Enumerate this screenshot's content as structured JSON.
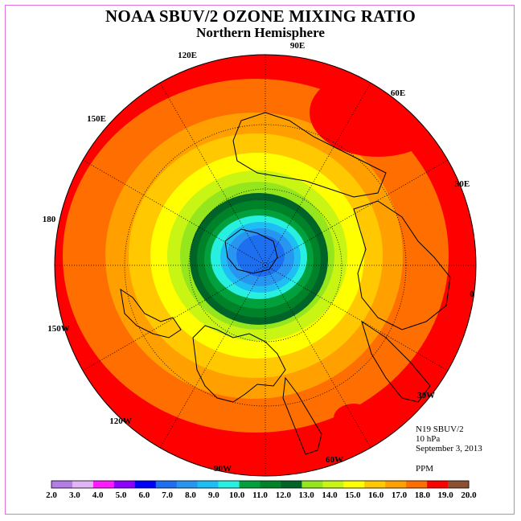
{
  "title": "NOAA SBUV/2 OZONE MIXING RATIO",
  "subtitle": "Northern Hemisphere",
  "info": {
    "satellite": "N19 SBUV/2",
    "level": "10 hPa",
    "date": "September 3, 2013",
    "units": "PPM"
  },
  "longitude_labels": [
    "90E",
    "60E",
    "30E",
    "0",
    "30W",
    "60W",
    "90W",
    "120W",
    "150W",
    "180",
    "150E",
    "120E"
  ],
  "colorbar": {
    "ticks": [
      "2.0",
      "3.0",
      "4.0",
      "5.0",
      "6.0",
      "7.0",
      "8.0",
      "9.0",
      "10.0",
      "11.0",
      "12.0",
      "13.0",
      "14.0",
      "15.0",
      "16.0",
      "17.0",
      "18.0",
      "19.0",
      "20.0"
    ],
    "colors": [
      "#b47de6",
      "#e1b4f5",
      "#ff1aff",
      "#8c00ff",
      "#0000ff",
      "#1e6ef0",
      "#2896f0",
      "#1ebef5",
      "#28f0e1",
      "#00a03c",
      "#008228",
      "#006428",
      "#96e61e",
      "#c8f514",
      "#ffff00",
      "#ffc800",
      "#ffa000",
      "#ff6e00",
      "#ff0000",
      "#8c5032"
    ]
  },
  "field": {
    "bands": [
      {
        "value": "18-19",
        "color": "#ff6e00"
      },
      {
        "value": "17-18",
        "color": "#ffa000"
      },
      {
        "value": "16-17",
        "color": "#ffc800"
      },
      {
        "value": "15-16",
        "color": "#ffff00"
      },
      {
        "value": "14-15",
        "color": "#c8f514"
      },
      {
        "value": "13-14",
        "color": "#96e61e"
      },
      {
        "value": "12-13",
        "color": "#006428"
      },
      {
        "value": "11-12",
        "color": "#008228"
      },
      {
        "value": "10-11",
        "color": "#00a03c"
      },
      {
        "value": "9-10",
        "color": "#28f0e1"
      },
      {
        "value": "8-9",
        "color": "#1ebef5"
      },
      {
        "value": "7-8",
        "color": "#2896f0"
      },
      {
        "value": "6-7",
        "color": "#1e6ef0"
      }
    ],
    "outer_color": "#ff0000"
  }
}
